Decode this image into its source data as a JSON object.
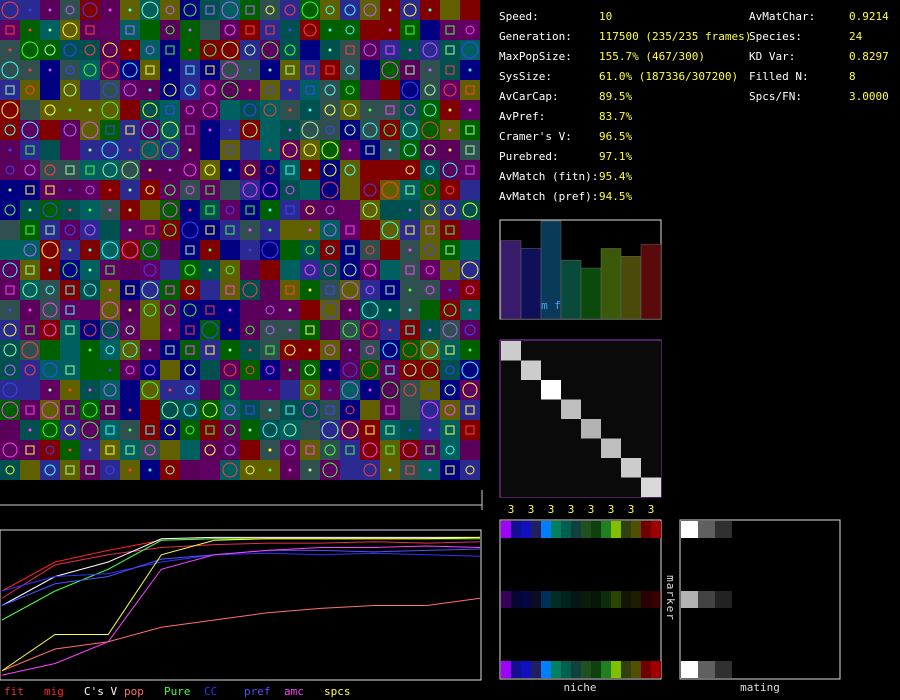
{
  "stats_left": [
    {
      "label": "Speed:",
      "value": "10"
    },
    {
      "label": "Generation:",
      "value": "117500 (235/235 frames)"
    },
    {
      "label": "MaxPopSize:",
      "value": "155.7% (467/300)"
    },
    {
      "label": "SysSize:",
      "value": "61.0% (187336/307200)"
    },
    {
      "label": "AvCarCap:",
      "value": "89.5%"
    },
    {
      "label": "AvPref:",
      "value": "83.7%"
    },
    {
      "label": "Cramer's V:",
      "value": "96.5%"
    },
    {
      "label": "Purebred:",
      "value": "97.1%"
    },
    {
      "label": "AvMatch (fitn):",
      "value": "95.4%"
    },
    {
      "label": "AvMatch (pref):",
      "value": "94.5%"
    }
  ],
  "stats_right": [
    {
      "label": "AvMatChar:",
      "value": "0.9214"
    },
    {
      "label": "Species:",
      "value": "24"
    },
    {
      "label": "KD Var:",
      "value": "0.8297"
    },
    {
      "label": "Filled N:",
      "value": "8"
    },
    {
      "label": "Spcs/FN:",
      "value": "3.0000"
    }
  ],
  "species_chart": {
    "label": "m f",
    "bars": [
      {
        "color": "#3a1a6a",
        "value": 80
      },
      {
        "color": "#10105a",
        "value": 72
      },
      {
        "color": "#0a3a5a",
        "value": 100
      },
      {
        "color": "#0a4a3a",
        "value": 60
      },
      {
        "color": "#0a4a0a",
        "value": 52
      },
      {
        "color": "#3a5a0a",
        "value": 72
      },
      {
        "color": "#4a4a0a",
        "value": 64
      },
      {
        "color": "#5a0a0a",
        "value": 76
      }
    ]
  },
  "similarity_matrix": {
    "diagonal": [
      0.8,
      0.8,
      1,
      0.75,
      0.7,
      0.75,
      0.8,
      0.85
    ],
    "column_labels": [
      "3",
      "3",
      "3",
      "3",
      "3",
      "3",
      "3",
      "3"
    ]
  },
  "marker_label": "marker",
  "niche_panel": {
    "title": "niche"
  },
  "mating_panel": {
    "title": "mating"
  },
  "history_chart": {
    "type": "line",
    "ylim": [
      0,
      100
    ],
    "series": [
      {
        "name": "fit",
        "color": "#e03050",
        "values": [
          55,
          78,
          85,
          90,
          92,
          93,
          93,
          94,
          93,
          94
        ]
      },
      {
        "name": "mig",
        "color": "#ff2020",
        "values": [
          60,
          80,
          88,
          95,
          96,
          96,
          96,
          96,
          96,
          96
        ]
      },
      {
        "name": "C's V",
        "color": "#ffffff",
        "values": [
          50,
          70,
          80,
          96,
          97,
          97,
          97,
          97,
          97,
          97
        ]
      },
      {
        "name": "pop",
        "color": "#ff7070",
        "values": [
          5,
          20,
          25,
          35,
          40,
          45,
          48,
          50,
          50,
          55
        ]
      },
      {
        "name": "Pure",
        "color": "#40ff40",
        "values": [
          40,
          60,
          75,
          95,
          96,
          96,
          96,
          96,
          96,
          96
        ]
      },
      {
        "name": "CC",
        "color": "#3030ff",
        "values": [
          60,
          70,
          72,
          80,
          85,
          86,
          85,
          86,
          85,
          84
        ]
      },
      {
        "name": "pref",
        "color": "#5050ff",
        "values": [
          50,
          65,
          70,
          82,
          85,
          88,
          88,
          87,
          88,
          89
        ]
      },
      {
        "name": "amc",
        "color": "#ff40ff",
        "values": [
          2,
          10,
          25,
          75,
          85,
          88,
          90,
          90,
          91,
          90
        ]
      },
      {
        "name": "spcs",
        "color": "#ffff40",
        "values": [
          5,
          30,
          30,
          85,
          95,
          96,
          96,
          96,
          96,
          97
        ]
      }
    ]
  }
}
